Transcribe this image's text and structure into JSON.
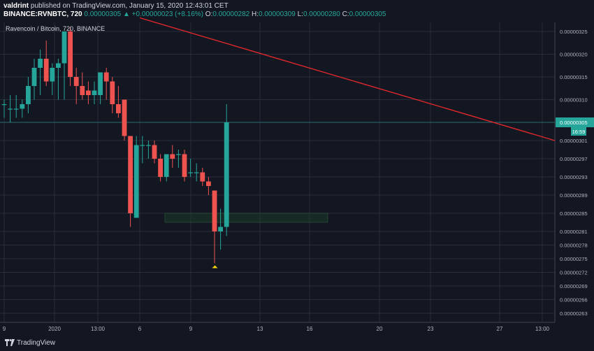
{
  "header": {
    "user": "valdrint",
    "published_on": "published on TradingView.com, January 15, 2020 12:43:01 CET",
    "symbol": "BINANCE:RVNBTC, 720",
    "price": "0.00000305",
    "change": "▲ +0.00000023 (+8.16%)",
    "o_label": "O:",
    "o_value": "0.00000282",
    "h_label": "H:",
    "h_value": "0.00000309",
    "l_label": "L:",
    "l_value": "0.00000280",
    "c_label": "C:",
    "c_value": "0.00000305"
  },
  "legend": "Ravencoin / Bitcoin, 720, BINANCE",
  "footer": {
    "brand": "TradingView"
  },
  "colors": {
    "background": "#131722",
    "grid": "#2a2e39",
    "up": "#26a69a",
    "down": "#ef5350",
    "trendline": "#e0282b",
    "support_zone": "#1b3a2a",
    "marker": "#f5d60a"
  },
  "chart_data": {
    "type": "candlestick",
    "title": "Ravencoin / Bitcoin, 720, BINANCE",
    "y_axis_ticks": [
      "0.00000325",
      "0.00000320",
      "0.00000315",
      "0.00000310",
      "0.00000305",
      "0.00000301",
      "0.00000297",
      "0.00000293",
      "0.00000289",
      "0.00000285",
      "0.00000281",
      "0.00000278",
      "0.00000275",
      "0.00000272",
      "0.00000269",
      "0.00000266",
      "0.00000263"
    ],
    "x_axis_ticks": [
      "9",
      "2020",
      "13:00",
      "6",
      "9",
      "13",
      "16",
      "20",
      "23",
      "27",
      "13:00"
    ],
    "current_price_label": "0.00000305",
    "countdown_label": "16:59",
    "price_line": 3.05e-06,
    "candles": [
      {
        "o": 3.09e-06,
        "h": 3.1e-06,
        "l": 3.06e-06,
        "c": 3.09e-06
      },
      {
        "o": 3.08e-06,
        "h": 3.11e-06,
        "l": 3.05e-06,
        "c": 3.08e-06
      },
      {
        "o": 3.08e-06,
        "h": 3.11e-06,
        "l": 3.06e-06,
        "c": 3.08e-06
      },
      {
        "o": 3.08e-06,
        "h": 3.1e-06,
        "l": 3.06e-06,
        "c": 3.09e-06
      },
      {
        "o": 3.09e-06,
        "h": 3.15e-06,
        "l": 3.07e-06,
        "c": 3.13e-06
      },
      {
        "o": 3.13e-06,
        "h": 3.19e-06,
        "l": 3.1e-06,
        "c": 3.17e-06
      },
      {
        "o": 3.17e-06,
        "h": 3.21e-06,
        "l": 3.11e-06,
        "c": 3.19e-06
      },
      {
        "o": 3.19e-06,
        "h": 3.23e-06,
        "l": 3.13e-06,
        "c": 3.14e-06
      },
      {
        "o": 3.14e-06,
        "h": 3.18e-06,
        "l": 3.11e-06,
        "c": 3.17e-06
      },
      {
        "o": 3.17e-06,
        "h": 3.19e-06,
        "l": 3.1e-06,
        "c": 3.18e-06
      },
      {
        "o": 3.18e-06,
        "h": 3.25e-06,
        "l": 3.1e-06,
        "c": 3.25e-06
      },
      {
        "o": 3.25e-06,
        "h": 3.26e-06,
        "l": 3.13e-06,
        "c": 3.15e-06
      },
      {
        "o": 3.15e-06,
        "h": 3.17e-06,
        "l": 3.09e-06,
        "c": 3.13e-06
      },
      {
        "o": 3.13e-06,
        "h": 3.16e-06,
        "l": 3.1e-06,
        "c": 3.11e-06
      },
      {
        "o": 3.12e-06,
        "h": 3.14e-06,
        "l": 3.09e-06,
        "c": 3.11e-06
      },
      {
        "o": 3.11e-06,
        "h": 3.14e-06,
        "l": 3.09e-06,
        "c": 3.12e-06
      },
      {
        "o": 3.11e-06,
        "h": 3.16e-06,
        "l": 3.09e-06,
        "c": 3.16e-06
      },
      {
        "o": 3.16e-06,
        "h": 3.17e-06,
        "l": 3.1e-06,
        "c": 3.14e-06
      },
      {
        "o": 3.14e-06,
        "h": 3.15e-06,
        "l": 3.07e-06,
        "c": 3.09e-06
      },
      {
        "o": 3.09e-06,
        "h": 3.13e-06,
        "l": 3.06e-06,
        "c": 3.07e-06
      },
      {
        "o": 3.1e-06,
        "h": 3.1e-06,
        "l": 3.01e-06,
        "c": 3.02e-06
      },
      {
        "o": 3.02e-06,
        "h": 3.02e-06,
        "l": 2.82e-06,
        "c": 2.85e-06
      },
      {
        "o": 2.84e-06,
        "h": 3.02e-06,
        "l": 2.84e-06,
        "c": 3e-06
      },
      {
        "o": 3e-06,
        "h": 3.02e-06,
        "l": 2.96e-06,
        "c": 3e-06
      },
      {
        "o": 3e-06,
        "h": 3.01e-06,
        "l": 2.97e-06,
        "c": 3e-06
      },
      {
        "o": 3e-06,
        "h": 3.01e-06,
        "l": 2.96e-06,
        "c": 2.97e-06
      },
      {
        "o": 2.97e-06,
        "h": 2.98e-06,
        "l": 2.92e-06,
        "c": 2.93e-06
      },
      {
        "o": 2.93e-06,
        "h": 2.98e-06,
        "l": 2.92e-06,
        "c": 2.98e-06
      },
      {
        "o": 2.98e-06,
        "h": 3e-06,
        "l": 2.95e-06,
        "c": 2.97e-06
      },
      {
        "o": 2.98e-06,
        "h": 2.99e-06,
        "l": 2.95e-06,
        "c": 2.98e-06
      },
      {
        "o": 2.98e-06,
        "h": 2.99e-06,
        "l": 2.92e-06,
        "c": 2.93e-06
      },
      {
        "o": 2.94e-06,
        "h": 2.97e-06,
        "l": 2.93e-06,
        "c": 2.94e-06
      },
      {
        "o": 2.94e-06,
        "h": 2.96e-06,
        "l": 2.92e-06,
        "c": 2.94e-06
      },
      {
        "o": 2.94e-06,
        "h": 2.95e-06,
        "l": 2.91e-06,
        "c": 2.92e-06
      },
      {
        "o": 2.92e-06,
        "h": 2.93e-06,
        "l": 2.89e-06,
        "c": 2.91e-06
      },
      {
        "o": 2.9e-06,
        "h": 2.9e-06,
        "l": 2.74e-06,
        "c": 2.81e-06
      },
      {
        "o": 2.81e-06,
        "h": 2.86e-06,
        "l": 2.77e-06,
        "c": 2.82e-06
      },
      {
        "o": 2.82e-06,
        "h": 3.09e-06,
        "l": 2.8e-06,
        "c": 3.05e-06
      }
    ],
    "annotations": {
      "trendline": {
        "from_price": 3.28e-06,
        "to_price": 3.01e-06,
        "color": "#e0282b"
      },
      "support_zone": {
        "top": 2.85e-06,
        "bottom": 2.83e-06
      },
      "marker": {
        "type": "triangle-up",
        "price": 2.74e-06
      }
    }
  }
}
